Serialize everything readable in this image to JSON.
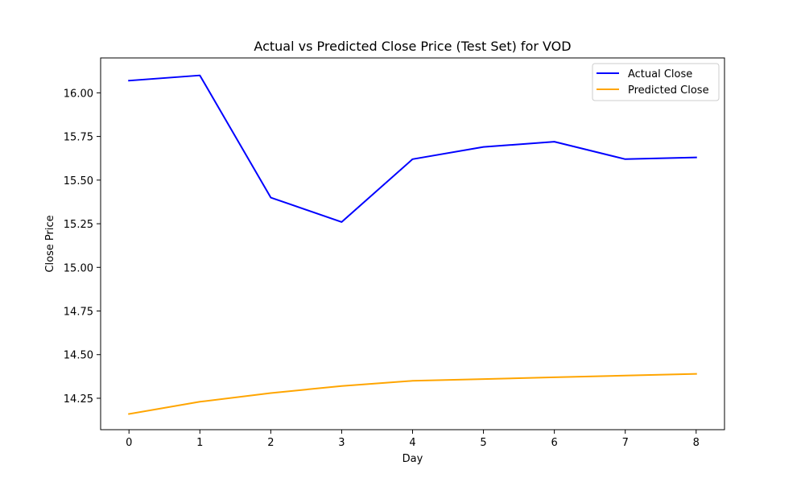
{
  "chart_data": {
    "type": "line",
    "title": "Actual vs Predicted Close Price (Test Set) for VOD",
    "xlabel": "Day",
    "ylabel": "Close Price",
    "x": [
      0,
      1,
      2,
      3,
      4,
      5,
      6,
      7,
      8
    ],
    "xlim": [
      -0.4,
      8.4
    ],
    "ylim": [
      14.07,
      16.2
    ],
    "xticks": [
      0,
      1,
      2,
      3,
      4,
      5,
      6,
      7,
      8
    ],
    "yticks": [
      14.25,
      14.5,
      14.75,
      15.0,
      15.25,
      15.5,
      15.75,
      16.0
    ],
    "ytick_labels": [
      "14.25",
      "14.50",
      "14.75",
      "15.00",
      "15.25",
      "15.50",
      "15.75",
      "16.00"
    ],
    "grid": false,
    "legend_position": "top-right",
    "series": [
      {
        "name": "Actual Close",
        "color": "#0000ff",
        "values": [
          16.07,
          16.1,
          15.4,
          15.26,
          15.62,
          15.69,
          15.72,
          15.62,
          15.63
        ]
      },
      {
        "name": "Predicted Close",
        "color": "#ffa500",
        "values": [
          14.16,
          14.23,
          14.28,
          14.32,
          14.35,
          14.36,
          14.37,
          14.38,
          14.39
        ]
      }
    ]
  }
}
